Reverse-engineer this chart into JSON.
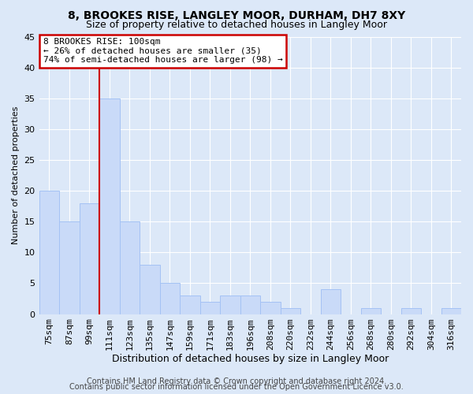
{
  "title": "8, BROOKES RISE, LANGLEY MOOR, DURHAM, DH7 8XY",
  "subtitle": "Size of property relative to detached houses in Langley Moor",
  "xlabel": "Distribution of detached houses by size in Langley Moor",
  "ylabel": "Number of detached properties",
  "categories": [
    "75sqm",
    "87sqm",
    "99sqm",
    "111sqm",
    "123sqm",
    "135sqm",
    "147sqm",
    "159sqm",
    "171sqm",
    "183sqm",
    "196sqm",
    "208sqm",
    "220sqm",
    "232sqm",
    "244sqm",
    "256sqm",
    "268sqm",
    "280sqm",
    "292sqm",
    "304sqm",
    "316sqm"
  ],
  "values": [
    20,
    15,
    18,
    35,
    15,
    8,
    5,
    3,
    2,
    3,
    3,
    2,
    1,
    0,
    4,
    0,
    1,
    0,
    1,
    0,
    1
  ],
  "bar_color": "#c9daf8",
  "bar_edge_color": "#a4c2f4",
  "red_line_index": 2,
  "annotation_line1": "8 BROOKES RISE: 100sqm",
  "annotation_line2": "← 26% of detached houses are smaller (35)",
  "annotation_line3": "74% of semi-detached houses are larger (98) →",
  "annotation_box_color": "#ffffff",
  "annotation_box_edge_color": "#cc0000",
  "red_line_color": "#cc0000",
  "ylim": [
    0,
    45
  ],
  "yticks": [
    0,
    5,
    10,
    15,
    20,
    25,
    30,
    35,
    40,
    45
  ],
  "footer1": "Contains HM Land Registry data © Crown copyright and database right 2024.",
  "footer2": "Contains public sector information licensed under the Open Government Licence v3.0.",
  "fig_bg_color": "#dce8f8",
  "axes_bg_color": "#dce8f8",
  "grid_color": "#ffffff",
  "title_fontsize": 10,
  "subtitle_fontsize": 9,
  "xlabel_fontsize": 9,
  "ylabel_fontsize": 8,
  "tick_fontsize": 8,
  "annot_fontsize": 8,
  "footer_fontsize": 7
}
